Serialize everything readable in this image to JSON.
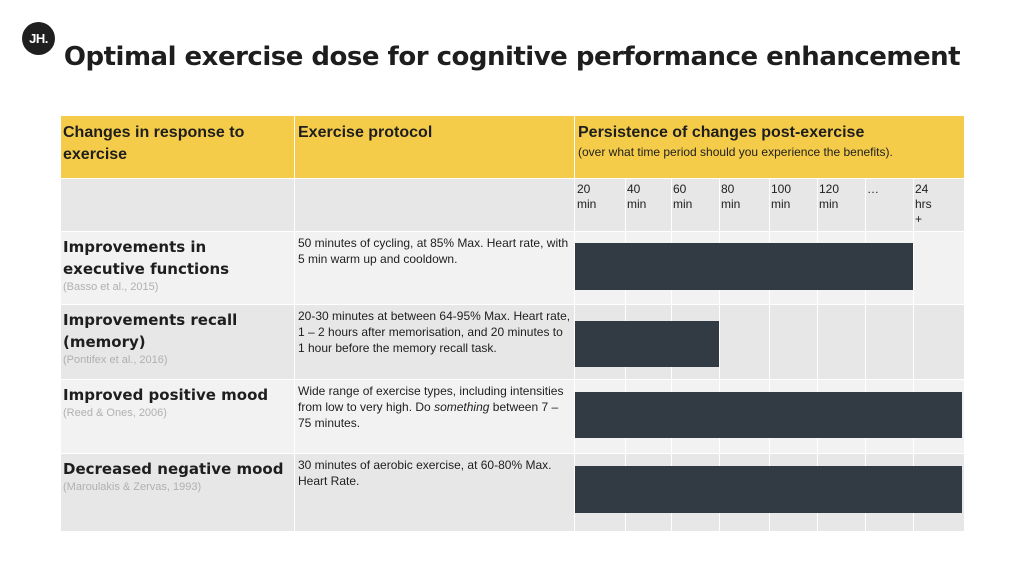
{
  "logo": "JH.",
  "title": "Optimal exercise dose for cognitive performance enhancement",
  "headers": {
    "col1": "Changes in response to exercise",
    "col2": "Exercise protocol",
    "col3": "Persistence of changes post-exercise",
    "col3_sub": "(over what time period should you experience the benefits)."
  },
  "ticks": [
    "20 min",
    "40 min",
    "60 min",
    "80 min",
    "100 min",
    "120 min",
    "…",
    "24 hrs +"
  ],
  "rows": [
    {
      "label": "Improvements in executive functions",
      "citation": "(Basso et al., 2015)",
      "protocol": "50 minutes of cycling, at 85% Max. Heart rate, with 5 min warm up and cooldown."
    },
    {
      "label": "Improvements recall (memory)",
      "citation": "(Pontifex et al., 2016)",
      "protocol": "20-30 minutes at between 64-95% Max. Heart rate, 1 – 2 hours after memorisation, and 20 minutes to 1 hour before the memory recall task."
    },
    {
      "label": "Improved positive mood",
      "citation": "(Reed & Ones, 2006)",
      "protocol_pre": "Wide range of exercise types, including intensities from low to very high. Do ",
      "protocol_em": "something",
      "protocol_post": " between 7 – 75 minutes."
    },
    {
      "label": "Decreased negative mood",
      "citation": "(Maroulakis & Zervas, 1993)",
      "protocol": "30 minutes of aerobic exercise, at 60-80% Max. Heart Rate."
    }
  ],
  "colors": {
    "header_bg": "#f5cc4a",
    "bar": "#323b43",
    "row_bg_a": "#e7e7e7",
    "row_bg_b": "#f2f2f2"
  },
  "chart_data": {
    "type": "bar",
    "orientation": "horizontal",
    "categories": [
      "Improvements in executive functions",
      "Improvements recall (memory)",
      "Improved positive mood",
      "Decreased negative mood"
    ],
    "x_ticks": [
      "20 min",
      "40 min",
      "60 min",
      "80 min",
      "100 min",
      "120 min",
      "…",
      "24 hrs +"
    ],
    "series": [
      {
        "values": [
          7,
          3,
          8,
          8
        ]
      }
    ],
    "value_unit": "tick intervals from left edge (column 6 = 120 min, 8 = 24 hrs +)",
    "xlim": [
      0,
      8
    ],
    "grid": true
  }
}
